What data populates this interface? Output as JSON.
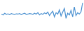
{
  "chart_data": {
    "type": "line",
    "categories": [
      null,
      null,
      null,
      null,
      null,
      null,
      null,
      null,
      null,
      null,
      null,
      null,
      null,
      null,
      null,
      null,
      null,
      null,
      null,
      null,
      null,
      null,
      null,
      null,
      null,
      null,
      null,
      null,
      null,
      null,
      null,
      null,
      null,
      null,
      null,
      null,
      null,
      null,
      null,
      null,
      null,
      null,
      null,
      null,
      null,
      null,
      null,
      null,
      null,
      null
    ],
    "values": [
      55,
      52,
      58,
      54,
      56,
      53,
      57,
      55,
      54,
      56,
      55,
      57,
      53,
      56,
      58,
      54,
      55,
      57,
      56,
      54,
      58,
      55,
      60,
      52,
      57,
      54,
      59,
      56,
      62,
      50,
      58,
      65,
      45,
      60,
      55,
      70,
      48,
      62,
      75,
      40,
      58,
      52,
      68,
      45,
      80,
      50,
      60,
      55,
      62,
      95
    ],
    "color": "#4a90d0",
    "ylim": [
      0,
      100
    ],
    "tick_labels": false
  }
}
